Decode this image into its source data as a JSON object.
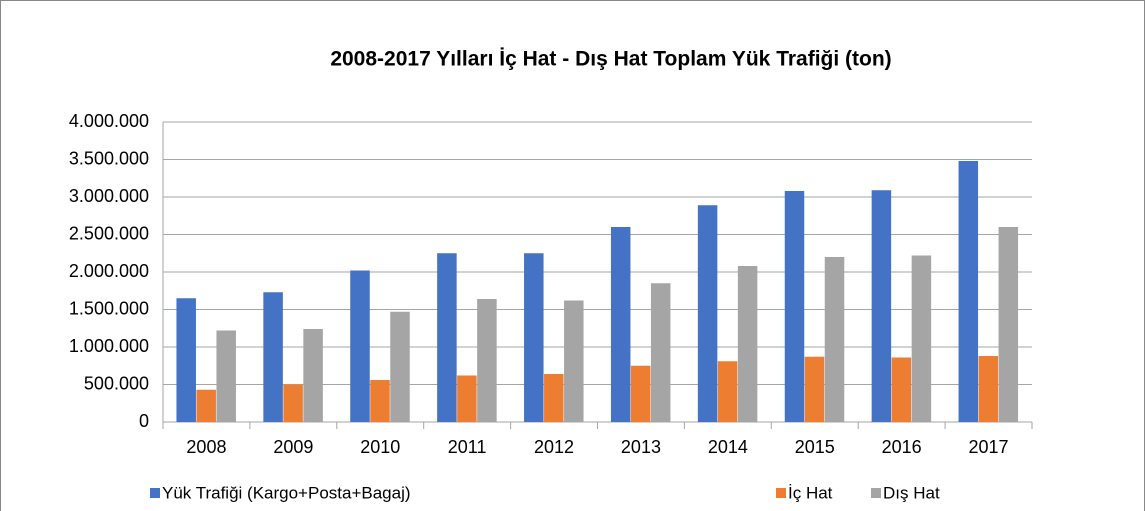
{
  "chart_data": {
    "type": "bar",
    "title": "2008-2017 Yılları İç Hat - Dış Hat  Toplam Yük Trafiği (ton)",
    "categories": [
      "2008",
      "2009",
      "2010",
      "2011",
      "2012",
      "2013",
      "2014",
      "2015",
      "2016",
      "2017"
    ],
    "series": [
      {
        "name": "Yük Trafiği (Kargo+Posta+Bagaj)",
        "color": "#4472c4",
        "values": [
          1650000,
          1730000,
          2020000,
          2250000,
          2250000,
          2600000,
          2890000,
          3080000,
          3090000,
          3480000
        ]
      },
      {
        "name": "İç Hat",
        "color": "#ed7d31",
        "values": [
          430000,
          500000,
          560000,
          620000,
          640000,
          750000,
          810000,
          870000,
          860000,
          880000
        ]
      },
      {
        "name": "Dış Hat",
        "color": "#a5a5a5",
        "values": [
          1220000,
          1240000,
          1470000,
          1640000,
          1620000,
          1850000,
          2080000,
          2200000,
          2220000,
          2600000
        ]
      }
    ],
    "ylim": [
      0,
      4000000
    ],
    "yticks": [
      0,
      {
        "value": 500000,
        "label": "500.000"
      },
      {
        "value": 1000000,
        "label": "1.000.000"
      },
      {
        "value": 1500000,
        "label": "1.500.000"
      },
      {
        "value": 2000000,
        "label": "2.000.000"
      },
      {
        "value": 2500000,
        "label": "2.500.000"
      },
      {
        "value": 3000000,
        "label": "3.000.000"
      },
      {
        "value": 3500000,
        "label": "3.500.000"
      },
      {
        "value": 4000000,
        "label": "4.000.000"
      }
    ],
    "grid": true,
    "legend": "bottom"
  }
}
